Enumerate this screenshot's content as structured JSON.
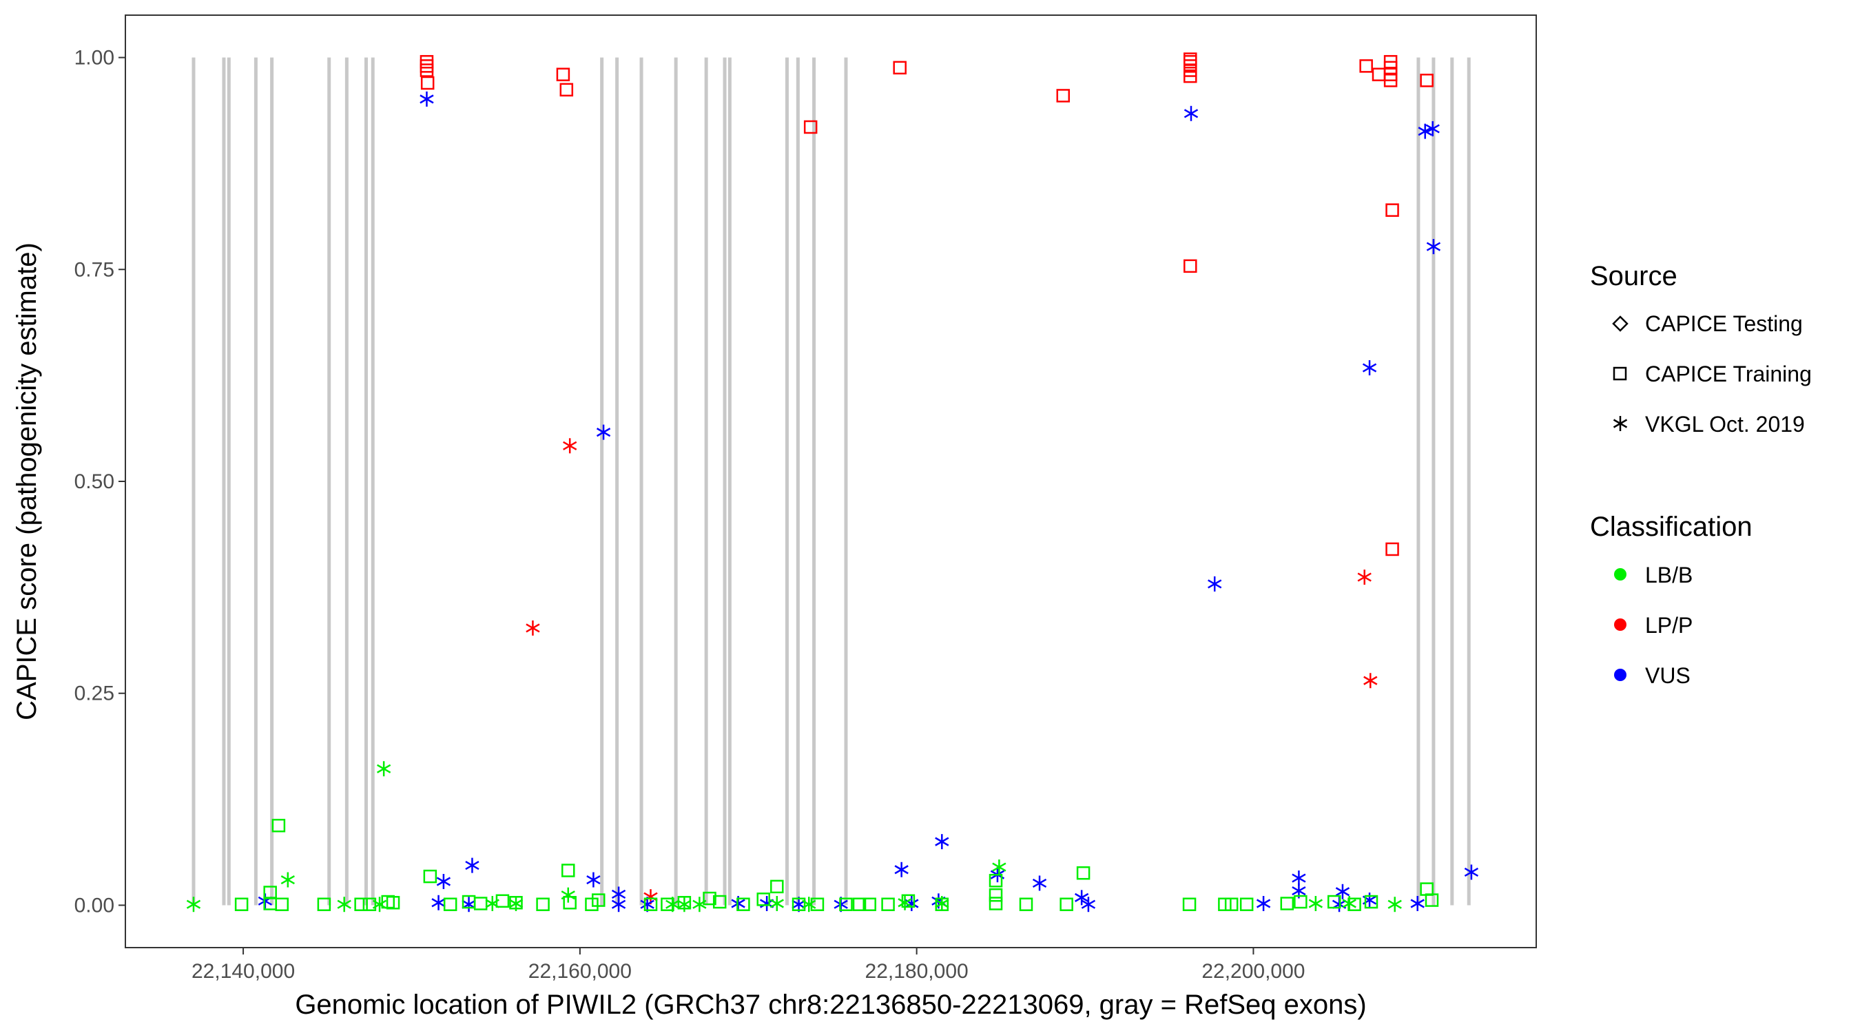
{
  "chart_data": {
    "type": "scatter",
    "title": "",
    "xlabel": "Genomic location of PIWIL2 (GRCh37 chr8:22136850-22213069, gray = RefSeq exons)",
    "ylabel": "CAPICE score (pathogenicity estimate)",
    "xlim": [
      22133000,
      22216800
    ],
    "ylim": [
      -0.05,
      1.05
    ],
    "x_ticks": [
      22140000,
      22160000,
      22180000,
      22200000
    ],
    "x_tick_labels": [
      "22,140,000",
      "22,160,000",
      "22,180,000",
      "22,200,000"
    ],
    "y_ticks": [
      0,
      0.25,
      0.5,
      0.75,
      1.0
    ],
    "y_tick_labels": [
      "0.00",
      "0.25",
      "0.50",
      "0.75",
      "1.00"
    ],
    "grid": false,
    "exons": [
      22137050,
      22138850,
      22139150,
      22140750,
      22141700,
      22145100,
      22146150,
      22147300,
      22147700,
      22161300,
      22162200,
      22163650,
      22165700,
      22167500,
      22168600,
      22168900,
      22172300,
      22172950,
      22173900,
      22175800,
      22209800,
      22210700,
      22211800,
      22212800
    ],
    "legend": {
      "source_title": "Source",
      "source_items": [
        {
          "label": "CAPICE Testing",
          "shape": "diamond"
        },
        {
          "label": "CAPICE Training",
          "shape": "square"
        },
        {
          "label": "VKGL Oct. 2019",
          "shape": "asterisk"
        }
      ],
      "class_title": "Classification",
      "class_items": [
        {
          "label": "LB/B",
          "color": "#00ee00"
        },
        {
          "label": "LP/P",
          "color": "#ff0000"
        },
        {
          "label": "VUS",
          "color": "#0000ff"
        }
      ]
    },
    "series": [
      {
        "name": "CAPICE Training LP/P",
        "shape": "square",
        "color": "#ff0000",
        "points": [
          [
            22150900,
            0.995
          ],
          [
            22150900,
            0.99
          ],
          [
            22150900,
            0.985
          ],
          [
            22150950,
            0.97
          ],
          [
            22159000,
            0.98
          ],
          [
            22159200,
            0.962
          ],
          [
            22179000,
            0.988
          ],
          [
            22173700,
            0.918
          ],
          [
            22188700,
            0.955
          ],
          [
            22196250,
            0.998
          ],
          [
            22196250,
            0.995
          ],
          [
            22196250,
            0.99
          ],
          [
            22196250,
            0.985
          ],
          [
            22196250,
            0.978
          ],
          [
            22196250,
            0.754
          ],
          [
            22206700,
            0.99
          ],
          [
            22207450,
            0.98
          ],
          [
            22208150,
            0.995
          ],
          [
            22208150,
            0.988
          ],
          [
            22208150,
            0.98
          ],
          [
            22208150,
            0.973
          ],
          [
            22208250,
            0.82
          ],
          [
            22208250,
            0.42
          ],
          [
            22210300,
            0.973
          ]
        ]
      },
      {
        "name": "VKGL LP/P",
        "shape": "asterisk",
        "color": "#ff0000",
        "points": [
          [
            22157200,
            0.327
          ],
          [
            22159400,
            0.542
          ],
          [
            22164200,
            0.01
          ],
          [
            22206600,
            0.387
          ],
          [
            22206950,
            0.265
          ]
        ]
      },
      {
        "name": "VKGL VUS",
        "shape": "asterisk",
        "color": "#0000ff",
        "points": [
          [
            22150900,
            0.951
          ],
          [
            22161400,
            0.558
          ],
          [
            22196300,
            0.934
          ],
          [
            22197700,
            0.379
          ],
          [
            22206900,
            0.634
          ],
          [
            22210200,
            0.913
          ],
          [
            22210650,
            0.916
          ],
          [
            22210700,
            0.777
          ],
          [
            22212950,
            0.039
          ],
          [
            22141300,
            0.005
          ],
          [
            22151600,
            0.003
          ],
          [
            22151900,
            0.028
          ],
          [
            22153600,
            0.047
          ],
          [
            22153400,
            0.001
          ],
          [
            22160800,
            0.03
          ],
          [
            22162300,
            0.013
          ],
          [
            22162300,
            0.001
          ],
          [
            22164000,
            0.001
          ],
          [
            22169400,
            0.002
          ],
          [
            22171100,
            0.002
          ],
          [
            22173000,
            0.001
          ],
          [
            22175500,
            0.001
          ],
          [
            22179100,
            0.042
          ],
          [
            22179700,
            0.002
          ],
          [
            22181500,
            0.075
          ],
          [
            22181300,
            0.005
          ],
          [
            22184800,
            0.036
          ],
          [
            22187300,
            0.026
          ],
          [
            22189800,
            0.009
          ],
          [
            22190200,
            0.001
          ],
          [
            22200600,
            0.002
          ],
          [
            22202700,
            0.032
          ],
          [
            22202700,
            0.017
          ],
          [
            22205300,
            0.016
          ],
          [
            22205100,
            0.001
          ],
          [
            22206900,
            0.006
          ],
          [
            22209750,
            0.002
          ]
        ]
      },
      {
        "name": "VKGL LB/B",
        "shape": "asterisk",
        "color": "#00ee00",
        "points": [
          [
            22137050,
            0.001
          ],
          [
            22142650,
            0.03
          ],
          [
            22146000,
            0.001
          ],
          [
            22148350,
            0.161
          ],
          [
            22148100,
            0.001
          ],
          [
            22154800,
            0.002
          ],
          [
            22156200,
            0.002
          ],
          [
            22159300,
            0.012
          ],
          [
            22165500,
            0.001
          ],
          [
            22166200,
            0.001
          ],
          [
            22167100,
            0.001
          ],
          [
            22171700,
            0.002
          ],
          [
            22173600,
            0.001
          ],
          [
            22179300,
            0.003
          ],
          [
            22181500,
            0.002
          ],
          [
            22184900,
            0.045
          ],
          [
            22203700,
            0.002
          ],
          [
            22205700,
            0.002
          ],
          [
            22208400,
            0.001
          ]
        ]
      },
      {
        "name": "CAPICE Training LB/B",
        "shape": "square",
        "color": "#00ee00",
        "points": [
          [
            22142100,
            0.094
          ],
          [
            22141600,
            0.015
          ],
          [
            22141600,
            0.002
          ],
          [
            22142300,
            0.001
          ],
          [
            22139900,
            0.001
          ],
          [
            22144800,
            0.001
          ],
          [
            22147000,
            0.001
          ],
          [
            22147500,
            0.001
          ],
          [
            22148600,
            0.004
          ],
          [
            22148900,
            0.003
          ],
          [
            22151100,
            0.034
          ],
          [
            22152300,
            0.001
          ],
          [
            22153400,
            0.004
          ],
          [
            22154100,
            0.002
          ],
          [
            22155400,
            0.005
          ],
          [
            22156200,
            0.003
          ],
          [
            22157800,
            0.001
          ],
          [
            22159300,
            0.041
          ],
          [
            22159400,
            0.003
          ],
          [
            22160700,
            0.001
          ],
          [
            22161100,
            0.006
          ],
          [
            22164200,
            0.001
          ],
          [
            22165200,
            0.001
          ],
          [
            22166200,
            0.003
          ],
          [
            22167700,
            0.008
          ],
          [
            22168300,
            0.004
          ],
          [
            22169700,
            0.001
          ],
          [
            22170900,
            0.007
          ],
          [
            22171700,
            0.022
          ],
          [
            22173000,
            0.001
          ],
          [
            22174100,
            0.001
          ],
          [
            22175800,
            0.001
          ],
          [
            22176600,
            0.001
          ],
          [
            22177200,
            0.001
          ],
          [
            22178300,
            0.001
          ],
          [
            22179500,
            0.005
          ],
          [
            22181500,
            0.001
          ],
          [
            22184700,
            0.029
          ],
          [
            22184700,
            0.012
          ],
          [
            22184700,
            0.002
          ],
          [
            22186500,
            0.001
          ],
          [
            22188900,
            0.001
          ],
          [
            22189900,
            0.038
          ],
          [
            22196200,
            0.001
          ],
          [
            22198300,
            0.001
          ],
          [
            22198700,
            0.001
          ],
          [
            22199600,
            0.001
          ],
          [
            22202000,
            0.002
          ],
          [
            22202800,
            0.004
          ],
          [
            22204800,
            0.004
          ],
          [
            22206000,
            0.001
          ],
          [
            22207000,
            0.004
          ],
          [
            22210300,
            0.019
          ],
          [
            22210600,
            0.006
          ]
        ]
      }
    ]
  }
}
